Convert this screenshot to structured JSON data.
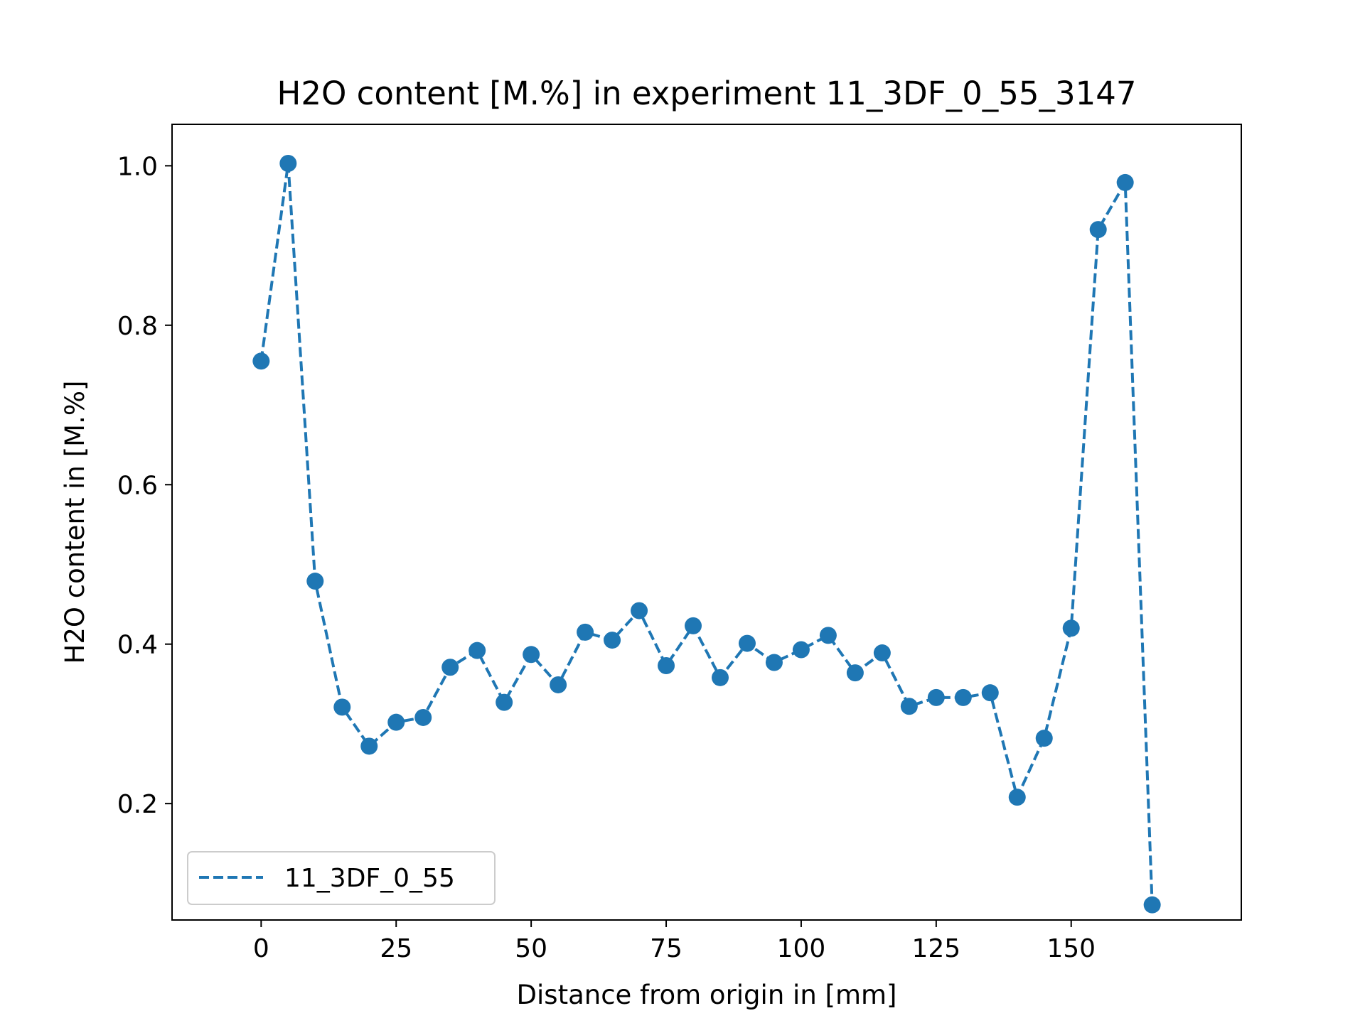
{
  "chart_data": {
    "type": "line",
    "title": "H2O content [M.%] in experiment 11_3DF_0_55_3147",
    "xlabel": "Distance from origin in [mm]",
    "ylabel": "H2O content in [M.%]",
    "xlim": [
      -16.5,
      181.5
    ],
    "ylim": [
      0.054,
      1.052
    ],
    "xticks": [
      0,
      25,
      50,
      75,
      100,
      125,
      150
    ],
    "yticks": [
      0.2,
      0.4,
      0.6,
      0.8,
      1.0
    ],
    "xtick_labels": [
      "0",
      "25",
      "50",
      "75",
      "100",
      "125",
      "150"
    ],
    "ytick_labels": [
      "0.2",
      "0.4",
      "0.6",
      "0.8",
      "1.0"
    ],
    "grid": false,
    "legend_position": "lower-left",
    "series": [
      {
        "name": "11_3DF_0_55",
        "color": "#1f77b4",
        "line_style": "dashed",
        "marker": "circle",
        "x": [
          0,
          5,
          10,
          15,
          20,
          25,
          30,
          35,
          40,
          45,
          50,
          55,
          60,
          65,
          70,
          75,
          80,
          85,
          90,
          95,
          100,
          105,
          110,
          115,
          120,
          125,
          130,
          135,
          140,
          145,
          150,
          155,
          160,
          165
        ],
        "values": [
          0.755,
          1.003,
          0.479,
          0.321,
          0.272,
          0.302,
          0.308,
          0.371,
          0.392,
          0.327,
          0.387,
          0.349,
          0.415,
          0.405,
          0.442,
          0.373,
          0.423,
          0.358,
          0.401,
          0.377,
          0.393,
          0.411,
          0.364,
          0.389,
          0.322,
          0.333,
          0.333,
          0.339,
          0.208,
          0.282,
          0.42,
          0.92,
          0.979,
          0.073
        ]
      }
    ]
  }
}
